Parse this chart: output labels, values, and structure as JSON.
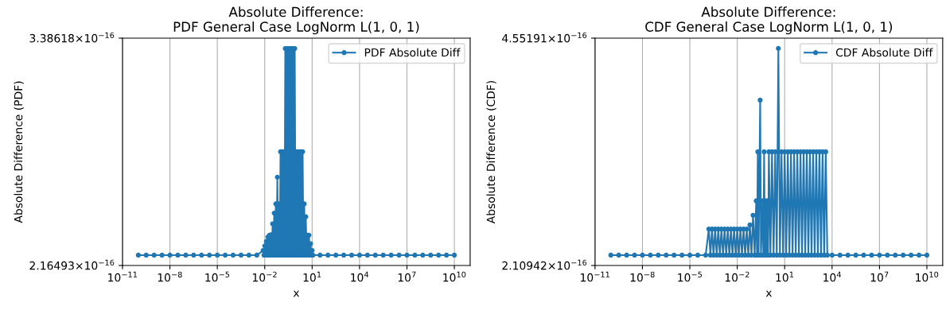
{
  "chart_data": [
    {
      "type": "line",
      "title": "Absolute Difference:\nPDF General Case LogNorm L(1, 0, 1)",
      "xlabel": "x",
      "ylabel": "Absolute Difference (PDF)",
      "log": "xy",
      "grid": "x",
      "legend": "top right",
      "marker": "circle",
      "line_style": "solid",
      "xlim": [
        1e-11,
        100000000000.0
      ],
      "xticks": [
        {
          "value": 1e-11,
          "label": "10$^{−11}$"
        },
        {
          "value": 1e-08,
          "label": "10$^{−8}$"
        },
        {
          "value": 1e-05,
          "label": "10$^{−5}$"
        },
        {
          "value": 0.01,
          "label": "10$^{−2}$"
        },
        {
          "value": 10.0,
          "label": "10$^{1}$"
        },
        {
          "value": 10000.0,
          "label": "10$^{4}$"
        },
        {
          "value": 10000000.0,
          "label": "10$^{7}$"
        },
        {
          "value": 10000000000.0,
          "label": "10$^{10}$"
        }
      ],
      "ylim": [
        2.16493e-16,
        3.38618e-16
      ],
      "yticks": [
        {
          "value": 2.16493e-16,
          "label": "2.16493×10$^{−16}$"
        },
        {
          "value": 3.38618e-16,
          "label": "3.38618×10$^{−16}$"
        }
      ],
      "series": [
        {
          "name": "PDF Absolute Diff",
          "color": "#1f77b4",
          "x": [
            1e-10,
            3.162e-10,
            1e-09,
            3.162e-09,
            1e-08,
            3.162e-08,
            1e-07,
            3.162e-07,
            1e-06,
            3.162e-06,
            1e-05,
            3.162e-05,
            0.0001,
            0.0003162,
            0.001,
            0.003162,
            0.007943,
            0.008913,
            0.01,
            0.01122,
            0.01259,
            0.01413,
            0.01585,
            0.01778,
            0.01995,
            0.02239,
            0.02512,
            0.02818,
            0.03162,
            0.03548,
            0.03981,
            0.04467,
            0.05012,
            0.05623,
            0.0631,
            0.07079,
            0.07943,
            0.08913,
            0.1,
            0.1122,
            0.1259,
            0.1413,
            0.1585,
            0.1778,
            0.1995,
            0.2239,
            0.2512,
            0.2818,
            0.3162,
            0.3548,
            0.3981,
            0.4467,
            0.5012,
            0.5623,
            0.631,
            0.7079,
            0.7943,
            0.8913,
            1,
            1.122,
            1.259,
            1.413,
            1.585,
            1.778,
            1.995,
            2.239,
            2.512,
            2.818,
            3.162,
            3.548,
            3.981,
            4.467,
            5.012,
            5.623,
            6.31,
            7.079,
            7.943,
            8.913,
            10,
            11.22,
            31.62,
            100,
            316.2,
            1000,
            3162,
            10000.0,
            31620.0,
            100000.0,
            316200.0,
            1000000.0,
            3162000.0,
            10000000.0,
            31620000.0,
            100000000.0,
            316200000.0,
            1000000000.0,
            3162000000.0,
            10000000000.0
          ],
          "values": [
            2.2094e-16,
            2.2094e-16,
            2.2094e-16,
            2.2094e-16,
            2.2094e-16,
            2.2094e-16,
            2.2094e-16,
            2.2094e-16,
            2.2094e-16,
            2.2094e-16,
            2.2094e-16,
            2.2094e-16,
            2.2094e-16,
            2.2094e-16,
            2.2094e-16,
            2.2094e-16,
            2.23e-16,
            2.2094e-16,
            2.25e-16,
            2.2094e-16,
            2.27e-16,
            2.2094e-16,
            2.29e-16,
            2.2094e-16,
            2.298e-16,
            2.2094e-16,
            2.3e-16,
            2.2094e-16,
            2.35e-16,
            2.2094e-16,
            2.4e-16,
            2.2094e-16,
            2.444e-16,
            2.2094e-16,
            2.576e-16,
            2.2094e-16,
            2.444e-16,
            2.2094e-16,
            2.708e-16,
            2.2094e-16,
            2.708e-16,
            2.2094e-16,
            2.708e-16,
            2.2094e-16,
            3.318e-16,
            2.2094e-16,
            3.318e-16,
            2.2094e-16,
            3.318e-16,
            2.2094e-16,
            3.318e-16,
            2.2094e-16,
            3.318e-16,
            2.2094e-16,
            3.318e-16,
            2.2094e-16,
            3.318e-16,
            2.2094e-16,
            2.708e-16,
            2.2094e-16,
            2.708e-16,
            2.2094e-16,
            2.708e-16,
            2.2094e-16,
            2.708e-16,
            2.2094e-16,
            2.708e-16,
            2.2094e-16,
            2.444e-16,
            2.2094e-16,
            2.383e-16,
            2.2094e-16,
            2.298e-16,
            2.2094e-16,
            2.298e-16,
            2.2094e-16,
            2.26e-16,
            2.2094e-16,
            2.23e-16,
            2.2094e-16,
            2.2094e-16,
            2.2094e-16,
            2.2094e-16,
            2.2094e-16,
            2.2094e-16,
            2.2094e-16,
            2.2094e-16,
            2.2094e-16,
            2.2094e-16,
            2.2094e-16,
            2.2094e-16,
            2.2094e-16,
            2.2094e-16,
            2.2094e-16,
            2.2094e-16,
            2.2094e-16,
            2.2094e-16,
            2.2094e-16
          ]
        }
      ]
    },
    {
      "type": "line",
      "title": "Absolute Difference:\nCDF General Case LogNorm L(1, 0, 1)",
      "xlabel": "x",
      "ylabel": "Absolute Difference (CDF)",
      "log": "xy",
      "grid": "x",
      "legend": "top right",
      "marker": "circle",
      "line_style": "solid",
      "xlim": [
        1e-11,
        100000000000.0
      ],
      "xticks": [
        {
          "value": 1e-11,
          "label": "10$^{−11}$"
        },
        {
          "value": 1e-08,
          "label": "10$^{−8}$"
        },
        {
          "value": 1e-05,
          "label": "10$^{−5}$"
        },
        {
          "value": 0.01,
          "label": "10$^{−2}$"
        },
        {
          "value": 10.0,
          "label": "10$^{1}$"
        },
        {
          "value": 10000.0,
          "label": "10$^{4}$"
        },
        {
          "value": 10000000.0,
          "label": "10$^{7}$"
        },
        {
          "value": 10000000000.0,
          "label": "10$^{10}$"
        }
      ],
      "ylim": [
        2.10942e-16,
        4.55191e-16
      ],
      "yticks": [
        {
          "value": 2.10942e-16,
          "label": "2.10942×10$^{−16}$"
        },
        {
          "value": 4.55191e-16,
          "label": "4.55191×10$^{−16}$"
        }
      ],
      "series": [
        {
          "name": "CDF Absolute Diff",
          "color": "#1f77b4",
          "x": [
            1e-10,
            3.162e-10,
            1e-09,
            3.162e-09,
            1e-08,
            3.162e-08,
            1e-07,
            3.162e-07,
            1e-06,
            3.162e-06,
            1e-05,
            3.162e-05,
            0.0001,
            0.0001585,
            0.0001995,
            0.0002512,
            0.0003162,
            0.0003981,
            0.0005012,
            0.000631,
            0.0007943,
            0.001,
            0.001259,
            0.001585,
            0.001995,
            0.002512,
            0.003162,
            0.003981,
            0.005012,
            0.00631,
            0.007943,
            0.01,
            0.01259,
            0.01585,
            0.01995,
            0.02512,
            0.03162,
            0.03981,
            0.05012,
            0.0631,
            0.07943,
            0.1,
            0.1259,
            0.1585,
            0.1778,
            0.1995,
            0.2239,
            0.2818,
            0.3162,
            0.3981,
            0.4467,
            0.5012,
            0.5623,
            0.631,
            0.7079,
            0.7943,
            0.8913,
            1,
            1.259,
            1.585,
            1.995,
            2.512,
            3.162,
            3.981,
            5.012,
            6.31,
            7.943,
            10,
            12.59,
            15.85,
            19.95,
            25.12,
            31.62,
            39.81,
            50.12,
            63.1,
            79.43,
            100,
            125.9,
            158.5,
            199.5,
            251.2,
            316.2,
            398.1,
            501.2,
            631,
            794.3,
            1000,
            1259,
            1585,
            1995,
            2512,
            3162,
            3981,
            5012,
            10000.0,
            31620.0,
            100000.0,
            316200.0,
            1000000.0,
            3162000.0,
            10000000.0,
            31620000.0,
            100000000.0,
            316200000.0,
            1000000000.0,
            3162000000.0,
            10000000000.0
          ],
          "values": [
            2.1845e-16,
            2.1845e-16,
            2.1845e-16,
            2.1845e-16,
            2.1845e-16,
            2.1845e-16,
            2.1845e-16,
            2.1845e-16,
            2.1845e-16,
            2.1845e-16,
            2.1845e-16,
            2.1845e-16,
            2.1845e-16,
            2.386e-16,
            2.1845e-16,
            2.386e-16,
            2.1845e-16,
            2.386e-16,
            2.1845e-16,
            2.386e-16,
            2.1845e-16,
            2.386e-16,
            2.1845e-16,
            2.386e-16,
            2.1845e-16,
            2.386e-16,
            2.1845e-16,
            2.386e-16,
            2.1845e-16,
            2.386e-16,
            2.1845e-16,
            2.386e-16,
            2.1845e-16,
            2.386e-16,
            2.1845e-16,
            2.386e-16,
            2.1845e-16,
            2.386e-16,
            2.1845e-16,
            2.42e-16,
            2.1845e-16,
            2.5e-16,
            2.1845e-16,
            2.625e-16,
            2.1845e-16,
            3.099e-16,
            2.1845e-16,
            3.691e-16,
            2.1845e-16,
            2.625e-16,
            2.1845e-16,
            3.099e-16,
            2.1845e-16,
            2.625e-16,
            2.1845e-16,
            2.625e-16,
            2.1845e-16,
            3.099e-16,
            2.1845e-16,
            3.099e-16,
            2.1845e-16,
            3.099e-16,
            2.1845e-16,
            4.3975e-16,
            2.1845e-16,
            3.099e-16,
            2.1845e-16,
            3.099e-16,
            2.1845e-16,
            3.099e-16,
            2.1845e-16,
            3.099e-16,
            2.1845e-16,
            3.099e-16,
            2.1845e-16,
            3.099e-16,
            2.1845e-16,
            3.099e-16,
            2.1845e-16,
            3.099e-16,
            2.1845e-16,
            3.099e-16,
            2.1845e-16,
            3.099e-16,
            2.1845e-16,
            3.099e-16,
            2.1845e-16,
            3.099e-16,
            2.1845e-16,
            3.099e-16,
            2.1845e-16,
            3.099e-16,
            2.1845e-16,
            3.099e-16,
            2.1845e-16,
            2.1845e-16,
            2.1845e-16,
            2.1845e-16,
            2.1845e-16,
            2.1845e-16,
            2.1845e-16,
            2.1845e-16,
            2.1845e-16,
            2.1845e-16,
            2.1845e-16,
            2.1845e-16,
            2.1845e-16,
            2.1845e-16
          ]
        }
      ]
    }
  ]
}
